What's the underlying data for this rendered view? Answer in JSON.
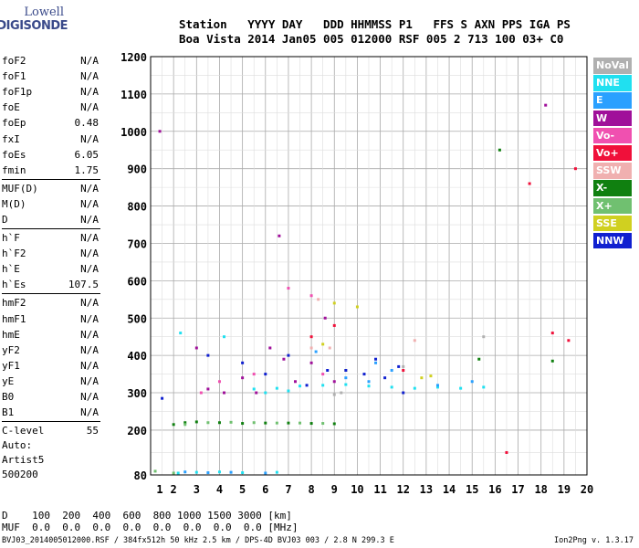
{
  "logo": {
    "line1": "Lowell",
    "line2": "DIGISONDE"
  },
  "header": {
    "line1": "Station   YYYY DAY   DDD HHMMSS P1   FFS S AXN PPS IGA PS",
    "line2": "Boa Vista 2014 Jan05 005 012000 RSF 005 2 713 100 03+ C0"
  },
  "params": {
    "group1": [
      {
        "name": "foF2",
        "value": "N/A"
      },
      {
        "name": "foF1",
        "value": "N/A"
      },
      {
        "name": "foF1p",
        "value": "N/A"
      },
      {
        "name": "foE",
        "value": "N/A"
      },
      {
        "name": "foEp",
        "value": "0.48"
      },
      {
        "name": "fxI",
        "value": "N/A"
      },
      {
        "name": "foEs",
        "value": "6.05"
      },
      {
        "name": "fmin",
        "value": "1.75"
      }
    ],
    "group2": [
      {
        "name": "MUF(D)",
        "value": "N/A"
      },
      {
        "name": "M(D)",
        "value": "N/A"
      },
      {
        "name": "D",
        "value": "N/A"
      }
    ],
    "group3": [
      {
        "name": "h`F",
        "value": "N/A"
      },
      {
        "name": "h`F2",
        "value": "N/A"
      },
      {
        "name": "h`E",
        "value": "N/A"
      },
      {
        "name": "h`Es",
        "value": "107.5"
      }
    ],
    "group4": [
      {
        "name": "hmF2",
        "value": "N/A"
      },
      {
        "name": "hmF1",
        "value": "N/A"
      },
      {
        "name": "hmE",
        "value": "N/A"
      },
      {
        "name": "yF2",
        "value": "N/A"
      },
      {
        "name": "yF1",
        "value": "N/A"
      },
      {
        "name": "yE",
        "value": "N/A"
      },
      {
        "name": "B0",
        "value": "N/A"
      },
      {
        "name": "B1",
        "value": "N/A"
      }
    ],
    "group5": [
      {
        "name": "C-level",
        "value": "55"
      }
    ]
  },
  "auto": {
    "line1": "Auto:",
    "line2": "Artist5",
    "line3": "500200"
  },
  "legend": [
    {
      "label": "NoVal",
      "color": "#b0b0b0"
    },
    {
      "label": "NNE",
      "color": "#20e0f0"
    },
    {
      "label": "E",
      "color": "#2aa0ff"
    },
    {
      "label": "W",
      "color": "#a0109a"
    },
    {
      "label": "Vo-",
      "color": "#f050b0"
    },
    {
      "label": "Vo+",
      "color": "#f0103a"
    },
    {
      "label": "SSW",
      "color": "#f0b0b0"
    },
    {
      "label": "X-",
      "color": "#108010"
    },
    {
      "label": "X+",
      "color": "#70c070"
    },
    {
      "label": "SSE",
      "color": "#d0d020"
    },
    {
      "label": "NNW",
      "color": "#1020d0"
    }
  ],
  "dtable": {
    "line1": "D    100  200  400  600  800 1000 1500 3000 [km]",
    "line2": "MUF  0.0  0.0  0.0  0.0  0.0  0.0  0.0  0.0 [MHz]"
  },
  "footer": {
    "left": "BVJ03_2014005012000.RSF / 384fx512h 50 kHz 2.5 km / DPS-4D BVJ03 003 / 2.8 N 299.3 E",
    "right": "Ion2Png v. 1.3.17"
  },
  "chart_data": {
    "type": "scatter",
    "xlim": [
      1,
      20
    ],
    "ylim": [
      80,
      1200
    ],
    "xticks": [
      1,
      2,
      3,
      4,
      5,
      6,
      7,
      8,
      9,
      10,
      11,
      12,
      13,
      14,
      15,
      16,
      17,
      18,
      19,
      20
    ],
    "yticks": [
      80,
      200,
      300,
      400,
      500,
      600,
      700,
      800,
      900,
      1000,
      1100,
      1200
    ],
    "grid": true,
    "series": [
      {
        "name": "NNE",
        "color": "#20e0f0",
        "points": [
          [
            2.2,
            85
          ],
          [
            3.0,
            87
          ],
          [
            4.0,
            88
          ],
          [
            5.0,
            86
          ],
          [
            6.5,
            87
          ],
          [
            5.5,
            310
          ],
          [
            6.5,
            312
          ],
          [
            7.5,
            318
          ],
          [
            8.5,
            320
          ],
          [
            9.5,
            322
          ],
          [
            10.5,
            318
          ],
          [
            11.5,
            315
          ],
          [
            12.5,
            312
          ],
          [
            13.5,
            315
          ],
          [
            14.5,
            312
          ],
          [
            15.5,
            315
          ],
          [
            2.3,
            460
          ],
          [
            4.2,
            450
          ],
          [
            6.0,
            300
          ],
          [
            7.0,
            305
          ]
        ]
      },
      {
        "name": "E",
        "color": "#2aa0ff",
        "points": [
          [
            2.5,
            88
          ],
          [
            3.5,
            86
          ],
          [
            4.5,
            87
          ],
          [
            6.0,
            85
          ],
          [
            10.5,
            330
          ],
          [
            10.8,
            380
          ],
          [
            11.5,
            360
          ],
          [
            13.5,
            320
          ],
          [
            15.0,
            330
          ],
          [
            8.2,
            410
          ],
          [
            9.5,
            340
          ]
        ]
      },
      {
        "name": "W",
        "color": "#a0109a",
        "points": [
          [
            3.0,
            420
          ],
          [
            3.5,
            310
          ],
          [
            4.2,
            300
          ],
          [
            5.0,
            340
          ],
          [
            5.6,
            300
          ],
          [
            6.2,
            420
          ],
          [
            6.8,
            390
          ],
          [
            7.3,
            330
          ],
          [
            8.0,
            380
          ],
          [
            8.6,
            500
          ],
          [
            9.0,
            330
          ],
          [
            6.6,
            720
          ],
          [
            1.4,
            1000
          ],
          [
            18.2,
            1070
          ]
        ]
      },
      {
        "name": "Vo-",
        "color": "#f050b0",
        "points": [
          [
            3.2,
            300
          ],
          [
            4.0,
            330
          ],
          [
            5.5,
            350
          ],
          [
            7.0,
            580
          ],
          [
            8.0,
            560
          ],
          [
            8.5,
            350
          ]
        ]
      },
      {
        "name": "Vo+",
        "color": "#f0103a",
        "points": [
          [
            8.0,
            450
          ],
          [
            9.0,
            480
          ],
          [
            12.0,
            360
          ],
          [
            18.5,
            460
          ],
          [
            19.2,
            440
          ],
          [
            16.5,
            140
          ],
          [
            19.5,
            900
          ],
          [
            17.5,
            860
          ]
        ]
      },
      {
        "name": "SSW",
        "color": "#f0b0b0",
        "points": [
          [
            8.0,
            420
          ],
          [
            8.3,
            550
          ],
          [
            8.8,
            420
          ],
          [
            12.5,
            440
          ]
        ]
      },
      {
        "name": "X-",
        "color": "#108010",
        "points": [
          [
            2.0,
            215
          ],
          [
            2.5,
            220
          ],
          [
            3.0,
            222
          ],
          [
            4.0,
            220
          ],
          [
            5.0,
            218
          ],
          [
            6.0,
            219
          ],
          [
            7.0,
            219
          ],
          [
            8.0,
            218
          ],
          [
            9.0,
            217
          ],
          [
            15.3,
            390
          ],
          [
            16.2,
            950
          ],
          [
            18.5,
            385
          ]
        ]
      },
      {
        "name": "X+",
        "color": "#70c070",
        "points": [
          [
            2.5,
            215
          ],
          [
            3.5,
            220
          ],
          [
            4.5,
            221
          ],
          [
            5.5,
            220
          ],
          [
            6.5,
            219
          ],
          [
            7.5,
            219
          ],
          [
            8.5,
            218
          ],
          [
            1.2,
            90
          ],
          [
            2.0,
            85
          ]
        ]
      },
      {
        "name": "SSE",
        "color": "#d0d020",
        "points": [
          [
            9.0,
            540
          ],
          [
            10.0,
            530
          ],
          [
            12.8,
            340
          ],
          [
            13.2,
            345
          ],
          [
            8.5,
            430
          ],
          [
            9.5,
            360
          ]
        ]
      },
      {
        "name": "NNW",
        "color": "#1020d0",
        "points": [
          [
            3.5,
            400
          ],
          [
            5.0,
            380
          ],
          [
            6.0,
            350
          ],
          [
            7.0,
            400
          ],
          [
            7.8,
            320
          ],
          [
            8.7,
            360
          ],
          [
            9.5,
            360
          ],
          [
            10.3,
            350
          ],
          [
            10.8,
            390
          ],
          [
            11.2,
            340
          ],
          [
            11.8,
            370
          ],
          [
            12.0,
            300
          ],
          [
            1.5,
            285
          ]
        ]
      },
      {
        "name": "NoVal",
        "color": "#b0b0b0",
        "points": [
          [
            9.0,
            295
          ],
          [
            9.3,
            300
          ],
          [
            12.0,
            370
          ],
          [
            15.5,
            450
          ]
        ]
      }
    ]
  }
}
